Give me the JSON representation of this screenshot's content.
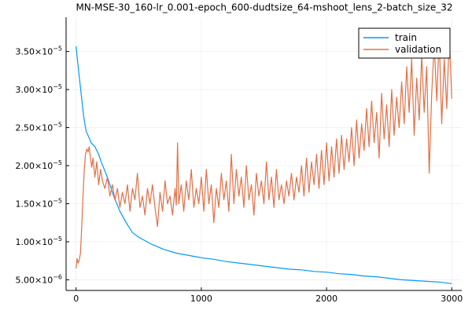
{
  "chart_data": {
    "type": "line",
    "title": "MN-MSE-30_160-lr_0.001-epoch_600-dudtsize_64-mshoot_lens_2-batch_size_32",
    "xlabel": "",
    "ylabel": "",
    "xlim": [
      -80,
      3080
    ],
    "ylim": [
      3.6e-06,
      3.95e-05
    ],
    "grid": true,
    "legend_position": "top-right",
    "x_ticks": [
      {
        "value": 0,
        "label": "0"
      },
      {
        "value": 1000,
        "label": "1000"
      },
      {
        "value": 2000,
        "label": "2000"
      },
      {
        "value": 3000,
        "label": "3000"
      }
    ],
    "y_ticks": [
      {
        "value": 5e-06,
        "mant": "5.00",
        "exp": "−6"
      },
      {
        "value": 1e-05,
        "mant": "1.00",
        "exp": "−5"
      },
      {
        "value": 1.5e-05,
        "mant": "1.50",
        "exp": "−5"
      },
      {
        "value": 2e-05,
        "mant": "2.00",
        "exp": "−5"
      },
      {
        "value": 2.5e-05,
        "mant": "2.50",
        "exp": "−5"
      },
      {
        "value": 3e-05,
        "mant": "3.00",
        "exp": "−5"
      },
      {
        "value": 3.5e-05,
        "mant": "3.50",
        "exp": "−5"
      }
    ],
    "x_tick_labels": [
      "0",
      "1000",
      "2000",
      "3000"
    ],
    "y_tick_label_sep": "×10",
    "series": [
      {
        "name": "train",
        "color": "#009AFA",
        "points": [
          [
            0,
            3.57e-05
          ],
          [
            10,
            3.4e-05
          ],
          [
            20,
            3.25e-05
          ],
          [
            40,
            2.95e-05
          ],
          [
            60,
            2.65e-05
          ],
          [
            80,
            2.45e-05
          ],
          [
            100,
            2.38e-05
          ],
          [
            120,
            2.3e-05
          ],
          [
            150,
            2.25e-05
          ],
          [
            180,
            2.15e-05
          ],
          [
            200,
            2.05e-05
          ],
          [
            250,
            1.85e-05
          ],
          [
            300,
            1.6e-05
          ],
          [
            350,
            1.4e-05
          ],
          [
            400,
            1.25e-05
          ],
          [
            450,
            1.12e-05
          ],
          [
            500,
            1.06e-05
          ],
          [
            600,
            9.7e-06
          ],
          [
            700,
            9e-06
          ],
          [
            800,
            8.5e-06
          ],
          [
            900,
            8.2e-06
          ],
          [
            1000,
            7.9e-06
          ],
          [
            1100,
            7.7e-06
          ],
          [
            1200,
            7.4e-06
          ],
          [
            1300,
            7.2e-06
          ],
          [
            1400,
            7e-06
          ],
          [
            1500,
            6.8e-06
          ],
          [
            1600,
            6.6e-06
          ],
          [
            1700,
            6.4e-06
          ],
          [
            1800,
            6.3e-06
          ],
          [
            1900,
            6.1e-06
          ],
          [
            2000,
            6e-06
          ],
          [
            2100,
            5.8e-06
          ],
          [
            2200,
            5.7e-06
          ],
          [
            2300,
            5.5e-06
          ],
          [
            2400,
            5.4e-06
          ],
          [
            2500,
            5.2e-06
          ],
          [
            2600,
            5e-06
          ],
          [
            2700,
            4.9e-06
          ],
          [
            2800,
            4.8e-06
          ],
          [
            2900,
            4.7e-06
          ],
          [
            3000,
            4.5e-06
          ]
        ]
      },
      {
        "name": "validation",
        "color": "#E26F46",
        "points": [
          [
            0,
            6.5e-06
          ],
          [
            8,
            7.8e-06
          ],
          [
            16,
            7.2e-06
          ],
          [
            25,
            7.6e-06
          ],
          [
            35,
            8.5e-06
          ],
          [
            45,
            1.2e-05
          ],
          [
            55,
            1.6e-05
          ],
          [
            65,
            1.95e-05
          ],
          [
            75,
            2.15e-05
          ],
          [
            85,
            2.22e-05
          ],
          [
            95,
            2.18e-05
          ],
          [
            105,
            2.25e-05
          ],
          [
            115,
            2.1e-05
          ],
          [
            125,
            1.98e-05
          ],
          [
            135,
            2.1e-05
          ],
          [
            150,
            1.85e-05
          ],
          [
            165,
            2.05e-05
          ],
          [
            180,
            1.75e-05
          ],
          [
            195,
            1.95e-05
          ],
          [
            210,
            1.8e-05
          ],
          [
            230,
            1.7e-05
          ],
          [
            250,
            1.85e-05
          ],
          [
            270,
            1.6e-05
          ],
          [
            290,
            1.75e-05
          ],
          [
            310,
            1.55e-05
          ],
          [
            330,
            1.7e-05
          ],
          [
            350,
            1.45e-05
          ],
          [
            370,
            1.65e-05
          ],
          [
            390,
            1.5e-05
          ],
          [
            410,
            1.75e-05
          ],
          [
            430,
            1.4e-05
          ],
          [
            450,
            1.7e-05
          ],
          [
            470,
            1.55e-05
          ],
          [
            490,
            1.9e-05
          ],
          [
            510,
            1.45e-05
          ],
          [
            530,
            1.6e-05
          ],
          [
            550,
            1.35e-05
          ],
          [
            570,
            1.7e-05
          ],
          [
            590,
            1.5e-05
          ],
          [
            610,
            1.75e-05
          ],
          [
            630,
            1.45e-05
          ],
          [
            650,
            1.2e-05
          ],
          [
            670,
            1.65e-05
          ],
          [
            690,
            1.4e-05
          ],
          [
            710,
            1.8e-05
          ],
          [
            730,
            1.5e-05
          ],
          [
            750,
            1.6e-05
          ],
          [
            770,
            1.35e-05
          ],
          [
            790,
            1.7e-05
          ],
          [
            800,
            1.48e-05
          ],
          [
            810,
            2.3e-05
          ],
          [
            820,
            1.5e-05
          ],
          [
            840,
            1.75e-05
          ],
          [
            860,
            1.4e-05
          ],
          [
            880,
            1.8e-05
          ],
          [
            900,
            1.55e-05
          ],
          [
            920,
            1.95e-05
          ],
          [
            940,
            1.45e-05
          ],
          [
            960,
            1.7e-05
          ],
          [
            980,
            1.5e-05
          ],
          [
            1000,
            1.85e-05
          ],
          [
            1020,
            1.4e-05
          ],
          [
            1040,
            1.95e-05
          ],
          [
            1060,
            1.5e-05
          ],
          [
            1080,
            1.75e-05
          ],
          [
            1100,
            1.25e-05
          ],
          [
            1120,
            1.7e-05
          ],
          [
            1140,
            1.45e-05
          ],
          [
            1160,
            1.9e-05
          ],
          [
            1180,
            1.55e-05
          ],
          [
            1200,
            1.8e-05
          ],
          [
            1220,
            1.4e-05
          ],
          [
            1240,
            2.15e-05
          ],
          [
            1260,
            1.5e-05
          ],
          [
            1280,
            1.95e-05
          ],
          [
            1300,
            1.6e-05
          ],
          [
            1320,
            1.85e-05
          ],
          [
            1340,
            1.45e-05
          ],
          [
            1360,
            2e-05
          ],
          [
            1380,
            1.55e-05
          ],
          [
            1400,
            1.75e-05
          ],
          [
            1420,
            1.35e-05
          ],
          [
            1440,
            1.9e-05
          ],
          [
            1460,
            1.6e-05
          ],
          [
            1480,
            1.8e-05
          ],
          [
            1500,
            1.5e-05
          ],
          [
            1520,
            2.05e-05
          ],
          [
            1540,
            1.55e-05
          ],
          [
            1560,
            1.85e-05
          ],
          [
            1580,
            1.45e-05
          ],
          [
            1600,
            1.95e-05
          ],
          [
            1620,
            1.55e-05
          ],
          [
            1640,
            1.75e-05
          ],
          [
            1660,
            1.5e-05
          ],
          [
            1680,
            1.8e-05
          ],
          [
            1700,
            1.6e-05
          ],
          [
            1720,
            1.9e-05
          ],
          [
            1740,
            1.55e-05
          ],
          [
            1760,
            1.85e-05
          ],
          [
            1780,
            1.65e-05
          ],
          [
            1800,
            2e-05
          ],
          [
            1820,
            1.6e-05
          ],
          [
            1840,
            2.1e-05
          ],
          [
            1860,
            1.65e-05
          ],
          [
            1880,
            2.05e-05
          ],
          [
            1900,
            1.75e-05
          ],
          [
            1920,
            2.15e-05
          ],
          [
            1940,
            1.7e-05
          ],
          [
            1960,
            2.2e-05
          ],
          [
            1980,
            1.75e-05
          ],
          [
            2000,
            2.3e-05
          ],
          [
            2020,
            1.8e-05
          ],
          [
            2040,
            2.25e-05
          ],
          [
            2060,
            1.85e-05
          ],
          [
            2080,
            2.35e-05
          ],
          [
            2100,
            1.9e-05
          ],
          [
            2120,
            2.4e-05
          ],
          [
            2140,
            1.95e-05
          ],
          [
            2160,
            2.35e-05
          ],
          [
            2180,
            2.05e-05
          ],
          [
            2200,
            2.5e-05
          ],
          [
            2220,
            2e-05
          ],
          [
            2240,
            2.6e-05
          ],
          [
            2260,
            2.1e-05
          ],
          [
            2280,
            2.55e-05
          ],
          [
            2300,
            2.2e-05
          ],
          [
            2320,
            2.75e-05
          ],
          [
            2340,
            2.25e-05
          ],
          [
            2360,
            2.85e-05
          ],
          [
            2380,
            2.3e-05
          ],
          [
            2400,
            2.7e-05
          ],
          [
            2420,
            2.1e-05
          ],
          [
            2440,
            2.95e-05
          ],
          [
            2460,
            2.35e-05
          ],
          [
            2480,
            2.8e-05
          ],
          [
            2500,
            2.25e-05
          ],
          [
            2520,
            3e-05
          ],
          [
            2540,
            2.4e-05
          ],
          [
            2560,
            2.9e-05
          ],
          [
            2580,
            2.5e-05
          ],
          [
            2600,
            3.1e-05
          ],
          [
            2620,
            2.55e-05
          ],
          [
            2640,
            3.3e-05
          ],
          [
            2660,
            2.7e-05
          ],
          [
            2680,
            3.4e-05
          ],
          [
            2700,
            2.4e-05
          ],
          [
            2720,
            3.15e-05
          ],
          [
            2740,
            2.6e-05
          ],
          [
            2760,
            3.45e-05
          ],
          [
            2780,
            2.7e-05
          ],
          [
            2800,
            3.3e-05
          ],
          [
            2820,
            1.9e-05
          ],
          [
            2840,
            2.95e-05
          ],
          [
            2860,
            3.6e-05
          ],
          [
            2880,
            2.85e-05
          ],
          [
            2900,
            3.7e-05
          ],
          [
            2920,
            2.55e-05
          ],
          [
            2940,
            3.4e-05
          ],
          [
            2960,
            2.75e-05
          ],
          [
            2980,
            3.7e-05
          ],
          [
            3000,
            2.88e-05
          ]
        ]
      }
    ]
  }
}
